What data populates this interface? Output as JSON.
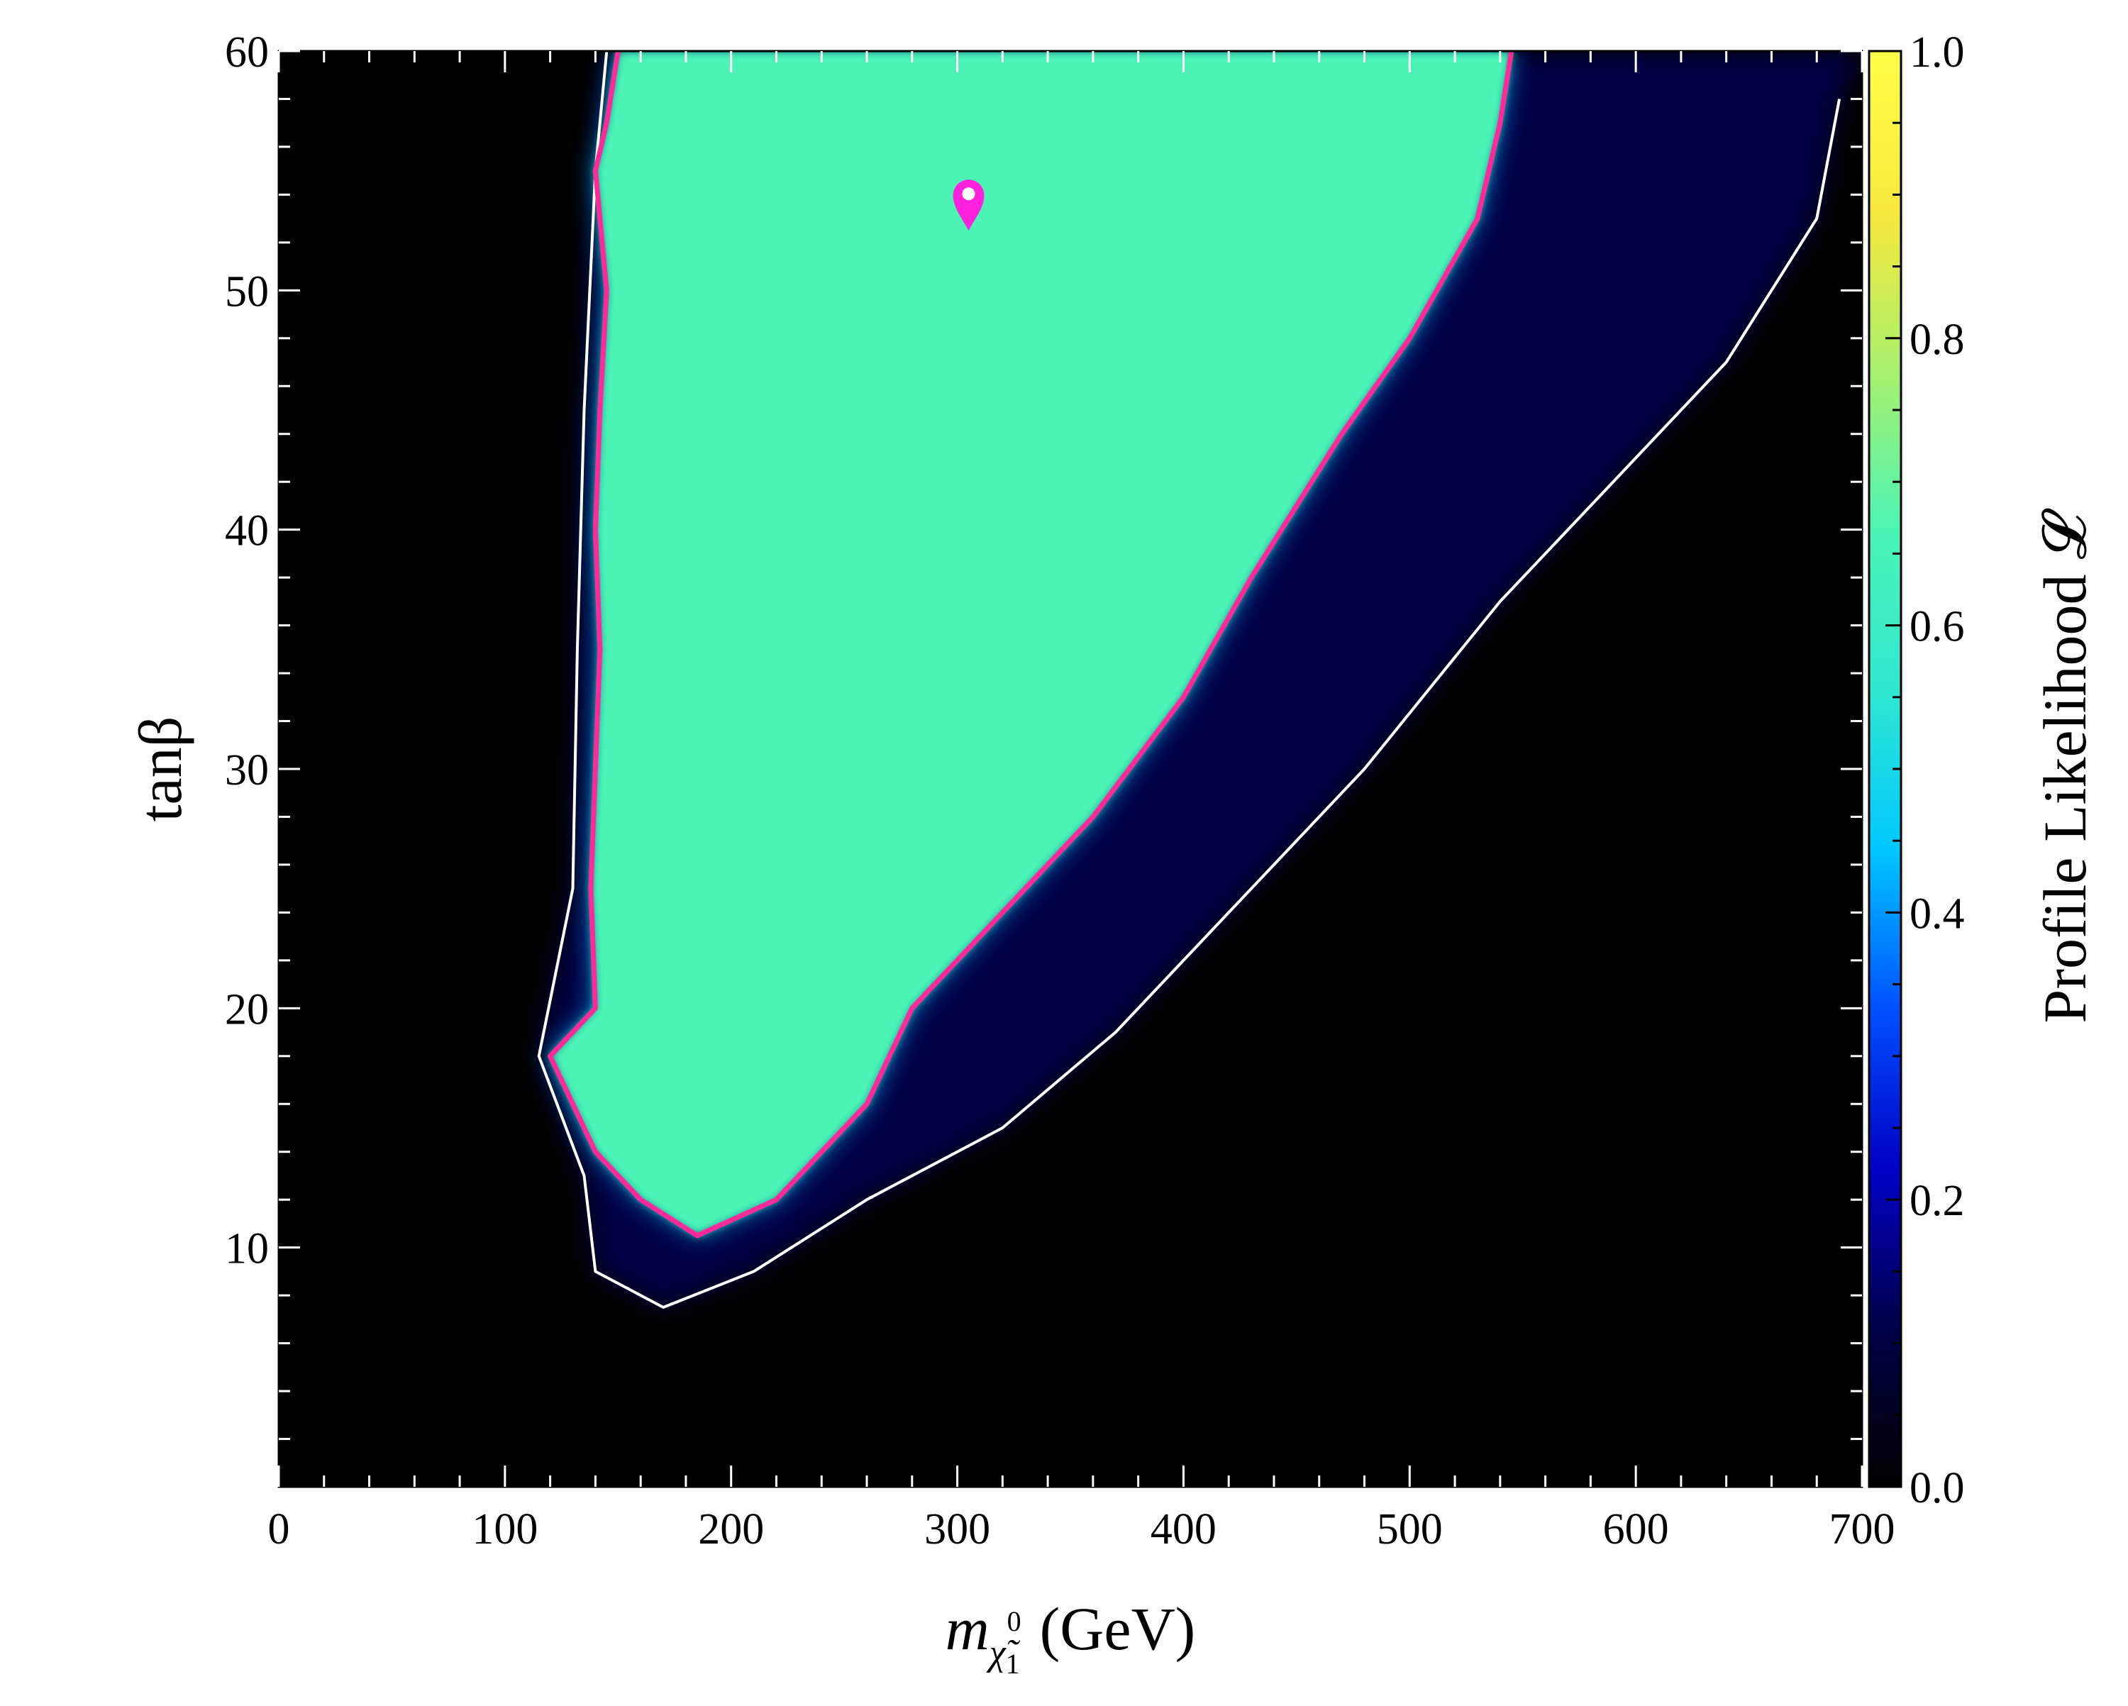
{
  "chart_data": {
    "type": "heatmap",
    "xlabel": "m",
    "xlabel_sub": "χ̃",
    "xlabel_sub_sup": "0",
    "xlabel_sub_sub": "1",
    "xlabel_unit": "(GeV)",
    "ylabel": "tanβ",
    "xlim": [
      0,
      700
    ],
    "ylim": [
      0,
      60
    ],
    "xticks": [
      "0",
      "100",
      "200",
      "300",
      "400",
      "500",
      "600",
      "700"
    ],
    "yticks": [
      "10",
      "20",
      "30",
      "40",
      "50",
      "60"
    ],
    "xtick_values": [
      0,
      100,
      200,
      300,
      400,
      500,
      600,
      700
    ],
    "ytick_values": [
      10,
      20,
      30,
      40,
      50,
      60
    ],
    "x_minor_step": 20,
    "y_minor_step": 2,
    "colorbar": {
      "label": "Profile Likelihood 𝓛",
      "range": [
        0,
        1
      ],
      "ticks": [
        "0.0",
        "0.2",
        "0.4",
        "0.6",
        "0.8",
        "1.0"
      ],
      "tick_values": [
        0,
        0.2,
        0.4,
        0.6,
        0.8,
        1.0
      ],
      "colormap": [
        "#000000",
        "#000048",
        "#0000c8",
        "#0050ff",
        "#00c8ff",
        "#30e8d0",
        "#4cf4b4",
        "#a8f06c",
        "#f8e83c",
        "#ffff48"
      ]
    },
    "regions": {
      "high_likelihood_boundary_left": [
        [
          150,
          60
        ],
        [
          145,
          57
        ],
        [
          140,
          55
        ],
        [
          145,
          50
        ],
        [
          142,
          45
        ],
        [
          140,
          40
        ],
        [
          142,
          35
        ],
        [
          140,
          30
        ],
        [
          138,
          25
        ],
        [
          140,
          20
        ],
        [
          120,
          18
        ],
        [
          140,
          14
        ],
        [
          160,
          12
        ],
        [
          185,
          10.5
        ]
      ],
      "high_likelihood_boundary_right": [
        [
          185,
          10.5
        ],
        [
          220,
          12
        ],
        [
          260,
          16
        ],
        [
          280,
          20
        ],
        [
          320,
          24
        ],
        [
          360,
          28
        ],
        [
          400,
          33
        ],
        [
          430,
          38
        ],
        [
          470,
          44
        ],
        [
          500,
          48
        ],
        [
          530,
          53
        ],
        [
          540,
          57
        ],
        [
          545,
          60
        ]
      ],
      "two_sigma_contour_left": [
        [
          145,
          60
        ],
        [
          140,
          55
        ],
        [
          135,
          45
        ],
        [
          132,
          35
        ],
        [
          130,
          25
        ],
        [
          115,
          18
        ],
        [
          135,
          13
        ],
        [
          140,
          9
        ],
        [
          170,
          7.5
        ]
      ],
      "two_sigma_contour_right": [
        [
          170,
          7.5
        ],
        [
          210,
          9
        ],
        [
          260,
          12
        ],
        [
          320,
          15
        ],
        [
          370,
          19
        ],
        [
          420,
          24
        ],
        [
          480,
          30
        ],
        [
          540,
          37
        ],
        [
          590,
          42
        ],
        [
          640,
          47
        ],
        [
          680,
          53
        ],
        [
          690,
          58
        ]
      ],
      "high_likelihood_value": 0.75,
      "band_value": 0.12
    },
    "best_fit_point": {
      "x": 305,
      "y": 53.5,
      "color": "#ff22dd"
    },
    "contour_colors": {
      "inner": "#ff2a9a",
      "outer": "#ffffff"
    }
  }
}
